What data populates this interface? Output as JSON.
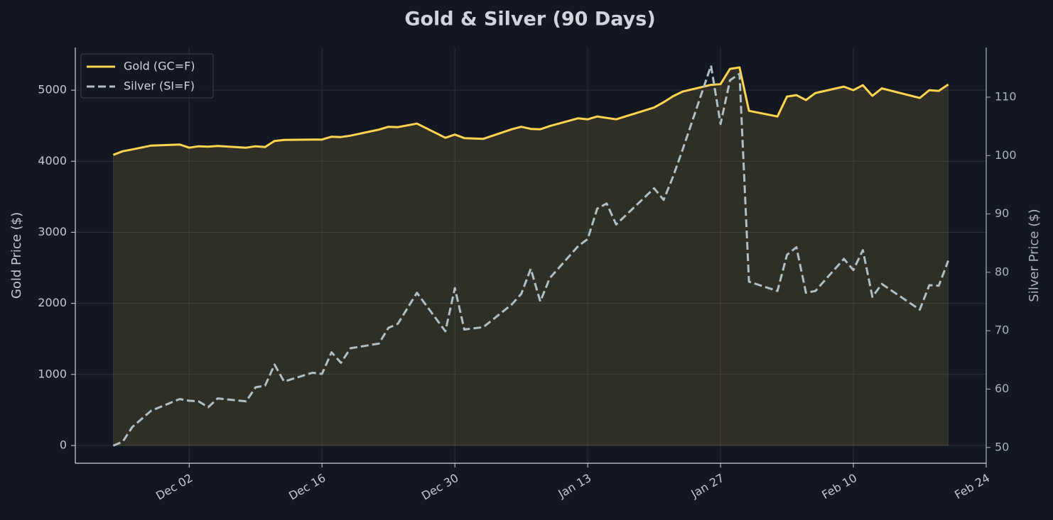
{
  "chart_data": {
    "type": "line",
    "title": "Gold & Silver (90 Days)",
    "ylabel": "Gold Price ($)",
    "y2label": "Silver Price ($)",
    "x": [
      "Nov 24",
      "Nov 25",
      "Nov 26",
      "Nov 28",
      "Dec 01",
      "Dec 02",
      "Dec 03",
      "Dec 04",
      "Dec 05",
      "Dec 08",
      "Dec 09",
      "Dec 10",
      "Dec 11",
      "Dec 12",
      "Dec 15",
      "Dec 16",
      "Dec 17",
      "Dec 18",
      "Dec 19",
      "Dec 22",
      "Dec 23",
      "Dec 24",
      "Dec 26",
      "Dec 29",
      "Dec 30",
      "Dec 31",
      "Jan 02",
      "Jan 05",
      "Jan 06",
      "Jan 07",
      "Jan 08",
      "Jan 09",
      "Jan 12",
      "Jan 13",
      "Jan 14",
      "Jan 15",
      "Jan 16",
      "Jan 20",
      "Jan 21",
      "Jan 22",
      "Jan 23",
      "Jan 26",
      "Jan 27",
      "Jan 28",
      "Jan 29",
      "Jan 30",
      "Feb 02",
      "Feb 03",
      "Feb 04",
      "Feb 05",
      "Feb 06",
      "Feb 09",
      "Feb 10",
      "Feb 11",
      "Feb 12",
      "Feb 13",
      "Feb 17",
      "Feb 18",
      "Feb 19",
      "Feb 20"
    ],
    "series": [
      {
        "name": "Gold (GC=F)",
        "color": "#ffd54f",
        "area": true,
        "linestyle": "solid",
        "values": [
          4090,
          4140,
          4165,
          4220,
          4235,
          4190,
          4210,
          4205,
          4215,
          4190,
          4210,
          4200,
          4285,
          4300,
          4305,
          4305,
          4345,
          4340,
          4360,
          4445,
          4485,
          4480,
          4530,
          4330,
          4375,
          4325,
          4315,
          4450,
          4485,
          4455,
          4450,
          4495,
          4605,
          4590,
          4630,
          4610,
          4590,
          4755,
          4830,
          4915,
          4980,
          5075,
          5085,
          5300,
          5320,
          4710,
          4630,
          4910,
          4930,
          4860,
          4960,
          5050,
          5000,
          5070,
          4920,
          5025,
          4890,
          5000,
          4990,
          5080
        ]
      },
      {
        "name": "Silver (SI=F)",
        "color": "#b0bec5",
        "axis": "y2",
        "linestyle": "dashed",
        "values": [
          50.3,
          51,
          53.5,
          56.3,
          58.3,
          58,
          57.9,
          56.9,
          58.4,
          57.9,
          60.3,
          60.6,
          64.2,
          61.3,
          62.8,
          62.6,
          66.3,
          64.5,
          67,
          67.8,
          70.5,
          71.2,
          76.5,
          69.9,
          77.3,
          70.2,
          70.6,
          74.5,
          76.3,
          80.6,
          75,
          79,
          84.5,
          85.7,
          90.9,
          91.8,
          88.2,
          94.4,
          92.4,
          96.4,
          101,
          115.4,
          105.4,
          112.9,
          114,
          78.4,
          76.8,
          83,
          84.3,
          76.5,
          76.8,
          82.3,
          80.4,
          83.8,
          75.8,
          78,
          73.6,
          77.8,
          77.7,
          82
        ]
      }
    ],
    "xlim": [
      "Nov 20",
      "Feb 24"
    ],
    "xticks": [
      "Dec 02",
      "Dec 16",
      "Dec 30",
      "Jan 13",
      "Jan 27",
      "Feb 10",
      "Feb 24"
    ],
    "ylim": [
      -250,
      5600
    ],
    "yticks": [
      0,
      1000,
      2000,
      3000,
      4000,
      5000
    ],
    "y2lim": [
      47.3,
      118.5
    ],
    "y2ticks": [
      50,
      60,
      70,
      80,
      90,
      100,
      110
    ],
    "grid": true,
    "legend": "upper left"
  }
}
